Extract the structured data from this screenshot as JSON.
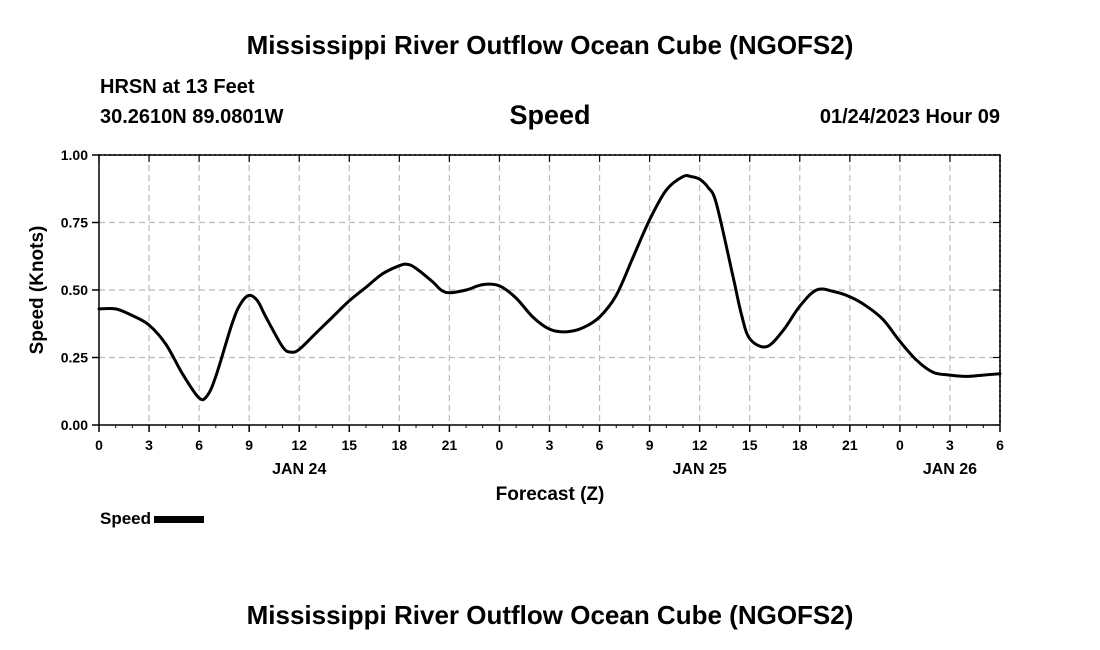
{
  "header": {
    "title": "Mississippi River Outflow Ocean Cube (NGOFS2)",
    "station": "HRSN at 13 Feet",
    "coords": "30.2610N  89.0801W",
    "datetime": "01/24/2023 Hour 09",
    "footer_title": "Mississippi River Outflow Ocean Cube (NGOFS2)"
  },
  "chart_data": {
    "type": "line",
    "title": "Speed",
    "xlabel": "Forecast (Z)",
    "ylabel": "Speed (Knots)",
    "xlim": [
      0,
      54
    ],
    "ylim": [
      0,
      1
    ],
    "y_ticks": [
      "0.00",
      "0.25",
      "0.50",
      "0.75",
      "1.00"
    ],
    "x_ticks": [
      "0",
      "3",
      "6",
      "9",
      "12",
      "15",
      "18",
      "21",
      "0",
      "3",
      "6",
      "9",
      "12",
      "15",
      "18",
      "21",
      "0",
      "3",
      "6"
    ],
    "date_labels": [
      {
        "text": "JAN 24",
        "hour": 12
      },
      {
        "text": "JAN 25",
        "hour": 36
      },
      {
        "text": "JAN 26",
        "hour": 51
      }
    ],
    "grid": true,
    "legend": "bottom-left",
    "series": [
      {
        "name": "Speed",
        "color": "#000000",
        "x": [
          0,
          1,
          2,
          3,
          4,
          5,
          6,
          6.5,
          7,
          8,
          8.5,
          9,
          9.5,
          10,
          11,
          11.5,
          12,
          13,
          14,
          15,
          16,
          17,
          18,
          18.5,
          19,
          20,
          20.5,
          21,
          22,
          23,
          24,
          25,
          26,
          27,
          28,
          29,
          30,
          31,
          32,
          33,
          34,
          35,
          35.5,
          36,
          36.5,
          37,
          38,
          38.5,
          39,
          40,
          41,
          42,
          43,
          44,
          45,
          46,
          47,
          48,
          49,
          50,
          51,
          52,
          53,
          54
        ],
        "y": [
          0.43,
          0.43,
          0.405,
          0.37,
          0.3,
          0.19,
          0.1,
          0.11,
          0.18,
          0.38,
          0.45,
          0.48,
          0.46,
          0.4,
          0.29,
          0.27,
          0.28,
          0.34,
          0.4,
          0.46,
          0.51,
          0.56,
          0.59,
          0.595,
          0.58,
          0.53,
          0.5,
          0.49,
          0.5,
          0.52,
          0.515,
          0.47,
          0.4,
          0.355,
          0.345,
          0.36,
          0.4,
          0.48,
          0.62,
          0.76,
          0.87,
          0.92,
          0.92,
          0.91,
          0.88,
          0.82,
          0.55,
          0.41,
          0.32,
          0.29,
          0.35,
          0.44,
          0.5,
          0.495,
          0.475,
          0.44,
          0.39,
          0.31,
          0.24,
          0.195,
          0.185,
          0.18,
          0.185,
          0.19
        ]
      }
    ]
  },
  "legend_label": "Speed"
}
